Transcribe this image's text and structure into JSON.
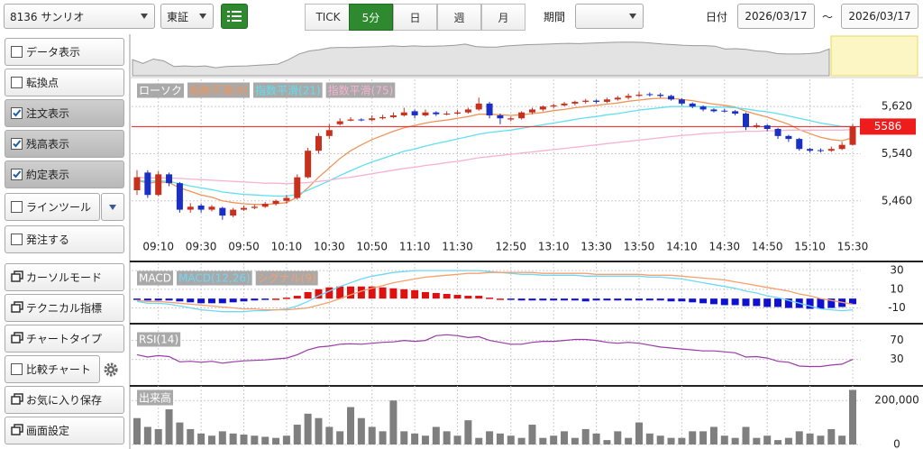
{
  "toolbar": {
    "symbol": "8136 サンリオ",
    "market": "東証",
    "intervals": [
      "TICK",
      "5分",
      "日",
      "週",
      "月"
    ],
    "active_interval": 1,
    "period_label": "期間",
    "date_label": "日付",
    "date_from": "2026/03/17",
    "date_sep": "～",
    "date_to": "2026/03/17"
  },
  "sidebar": [
    {
      "label": "データ表示",
      "checkbox": true,
      "checked": false
    },
    {
      "label": "転換点",
      "checkbox": true,
      "checked": false
    },
    {
      "label": "注文表示",
      "checkbox": true,
      "checked": true
    },
    {
      "label": "残高表示",
      "checkbox": true,
      "checked": true
    },
    {
      "label": "約定表示",
      "checkbox": true,
      "checked": true
    },
    {
      "label": "ラインツール",
      "checkbox": true,
      "checked": false,
      "accessory": "dropdown"
    },
    {
      "label": "発注する",
      "checkbox": true,
      "checked": false
    },
    {
      "label": "カーソルモード",
      "checkbox": false
    },
    {
      "label": "テクニカル指標",
      "checkbox": false
    },
    {
      "label": "チャートタイプ",
      "checkbox": false
    },
    {
      "label": "比較チャート",
      "checkbox": true,
      "checked": false,
      "accessory": "settings"
    },
    {
      "label": "お気に入り保存",
      "checkbox": false
    },
    {
      "label": "画面設定",
      "checkbox": false
    }
  ],
  "chart_data": [
    {
      "type": "candlestick",
      "name": "ローソク",
      "up_color": "#c8301e",
      "down_color": "#1b2fc4",
      "categories": [
        null,
        null,
        "09:10",
        null,
        null,
        null,
        "09:30",
        null,
        null,
        null,
        "09:50",
        null,
        null,
        null,
        "10:10",
        null,
        null,
        null,
        "10:30",
        null,
        null,
        null,
        "10:50",
        null,
        null,
        null,
        "11:10",
        null,
        null,
        null,
        "11:30",
        null,
        null,
        null,
        null,
        "12:50",
        null,
        null,
        null,
        "13:10",
        null,
        null,
        null,
        "13:30",
        null,
        null,
        null,
        "13:50",
        null,
        null,
        null,
        "14:10",
        null,
        null,
        null,
        "14:30",
        null,
        null,
        null,
        "14:50",
        null,
        null,
        null,
        "15:10",
        null,
        null,
        null,
        "15:30"
      ],
      "open": [
        5478,
        5508,
        5470,
        5505,
        5490,
        5445,
        5452,
        5445,
        5448,
        5435,
        5445,
        5448,
        5450,
        5455,
        5460,
        5465,
        5500,
        5545,
        5570,
        5590,
        5596,
        5598,
        5597,
        5600,
        5602,
        5605,
        5612,
        5605,
        5610,
        5607,
        5608,
        5610,
        5615,
        5625,
        5605,
        5598,
        5600,
        5610,
        5615,
        5620,
        5622,
        5625,
        5628,
        5630,
        5628,
        5632,
        5635,
        5638,
        5641,
        5640,
        5638,
        5632,
        5625,
        5620,
        5615,
        5613,
        5612,
        5608,
        5585,
        5588,
        5582,
        5570,
        5565,
        5548,
        5546,
        5545,
        5548,
        5555
      ],
      "high": [
        5512,
        5512,
        5510,
        5508,
        5492,
        5456,
        5455,
        5453,
        5450,
        5448,
        5452,
        5453,
        5458,
        5462,
        5470,
        5505,
        5550,
        5575,
        5590,
        5600,
        5602,
        5600,
        5605,
        5606,
        5610,
        5618,
        5615,
        5615,
        5612,
        5612,
        5614,
        5618,
        5635,
        5628,
        5608,
        5603,
        5612,
        5618,
        5622,
        5625,
        5628,
        5630,
        5633,
        5632,
        5635,
        5638,
        5642,
        5645,
        5644,
        5643,
        5640,
        5634,
        5627,
        5622,
        5617,
        5616,
        5614,
        5610,
        5592,
        5590,
        5584,
        5572,
        5567,
        5550,
        5549,
        5552,
        5560,
        5590
      ],
      "low": [
        5470,
        5465,
        5468,
        5485,
        5440,
        5440,
        5440,
        5442,
        5428,
        5432,
        5443,
        5446,
        5448,
        5452,
        5455,
        5462,
        5498,
        5540,
        5565,
        5588,
        5595,
        5595,
        5595,
        5598,
        5600,
        5603,
        5600,
        5603,
        5604,
        5605,
        5606,
        5608,
        5613,
        5600,
        5590,
        5595,
        5598,
        5607,
        5612,
        5617,
        5620,
        5622,
        5625,
        5625,
        5626,
        5630,
        5632,
        5636,
        5637,
        5635,
        5630,
        5622,
        5617,
        5612,
        5610,
        5610,
        5605,
        5580,
        5583,
        5578,
        5565,
        5560,
        5545,
        5542,
        5542,
        5543,
        5546,
        5554
      ],
      "close": [
        5500,
        5470,
        5505,
        5490,
        5445,
        5450,
        5445,
        5450,
        5435,
        5445,
        5448,
        5450,
        5455,
        5460,
        5465,
        5500,
        5545,
        5570,
        5580,
        5595,
        5598,
        5597,
        5600,
        5602,
        5605,
        5610,
        5605,
        5610,
        5607,
        5608,
        5610,
        5615,
        5625,
        5605,
        5600,
        5600,
        5610,
        5615,
        5620,
        5622,
        5625,
        5628,
        5630,
        5628,
        5632,
        5635,
        5638,
        5640,
        5640,
        5638,
        5632,
        5625,
        5620,
        5615,
        5612,
        5612,
        5608,
        5585,
        5588,
        5582,
        5570,
        5565,
        5548,
        5545,
        5545,
        5548,
        5555,
        5586
      ],
      "lines": [
        {
          "name": "指数平滑(9)",
          "color": "#f0955a",
          "values": [
            5495,
            5490,
            5492,
            5491,
            5482,
            5476,
            5470,
            5466,
            5460,
            5457,
            5455,
            5454,
            5454,
            5455,
            5457,
            5466,
            5482,
            5500,
            5516,
            5532,
            5545,
            5555,
            5564,
            5571,
            5578,
            5584,
            5588,
            5592,
            5595,
            5597,
            5600,
            5603,
            5607,
            5607,
            5606,
            5605,
            5606,
            5608,
            5610,
            5613,
            5615,
            5618,
            5620,
            5622,
            5624,
            5626,
            5629,
            5631,
            5633,
            5634,
            5634,
            5632,
            5630,
            5627,
            5624,
            5622,
            5619,
            5612,
            5607,
            5602,
            5596,
            5590,
            5581,
            5574,
            5568,
            5564,
            5562,
            5567
          ]
        },
        {
          "name": "指数平滑(21)",
          "color": "#5fe0ef",
          "values": [
            5495,
            5493,
            5494,
            5493,
            5489,
            5485,
            5482,
            5479,
            5475,
            5473,
            5471,
            5470,
            5469,
            5468,
            5468,
            5471,
            5478,
            5486,
            5494,
            5503,
            5511,
            5519,
            5526,
            5532,
            5538,
            5544,
            5548,
            5553,
            5557,
            5561,
            5565,
            5569,
            5573,
            5576,
            5578,
            5580,
            5583,
            5586,
            5589,
            5592,
            5595,
            5598,
            5601,
            5603,
            5606,
            5608,
            5611,
            5614,
            5616,
            5618,
            5620,
            5620,
            5620,
            5620,
            5619,
            5619,
            5618,
            5616,
            5613,
            5611,
            5608,
            5604,
            5600,
            5596,
            5592,
            5589,
            5586,
            5586
          ]
        },
        {
          "name": "指数平滑(75)",
          "color": "#f6b3d0",
          "values": [
            5500,
            5499,
            5499,
            5499,
            5498,
            5497,
            5496,
            5495,
            5494,
            5493,
            5492,
            5491,
            5490,
            5490,
            5489,
            5490,
            5491,
            5493,
            5495,
            5498,
            5500,
            5503,
            5506,
            5509,
            5512,
            5515,
            5517,
            5520,
            5522,
            5525,
            5527,
            5530,
            5533,
            5535,
            5537,
            5539,
            5541,
            5543,
            5545,
            5547,
            5549,
            5551,
            5553,
            5555,
            5557,
            5559,
            5561,
            5563,
            5565,
            5567,
            5569,
            5571,
            5572,
            5574,
            5575,
            5576,
            5577,
            5578,
            5578,
            5579,
            5579,
            5580,
            5580,
            5580,
            5580,
            5580,
            5580,
            5581
          ]
        }
      ],
      "last_price": 5586,
      "last_price_color": "#ee1c1c",
      "ylim": [
        5400,
        5660
      ],
      "yticks": [
        {
          "value": 5460,
          "label": "5,460"
        },
        {
          "value": 5540,
          "label": "5,540"
        },
        {
          "value": 5620,
          "label": "5,620"
        }
      ],
      "grid": true
    },
    {
      "type": "macd",
      "histogram": {
        "name": "MACD",
        "up_color": "#e01010",
        "down_color": "#1010d0",
        "values": [
          -1,
          -2,
          -2,
          -2,
          -3,
          -4,
          -5,
          -5,
          -5,
          -4,
          -3,
          -2,
          -1,
          0,
          1,
          3,
          7,
          10,
          12,
          13,
          13,
          13,
          13,
          12,
          11,
          10,
          9,
          7,
          6,
          5,
          4,
          3,
          3,
          1,
          0,
          -1,
          -2,
          -2,
          -2,
          -2,
          -2,
          -2,
          -3,
          -2,
          -2,
          -2,
          -2,
          -2,
          -2,
          -2,
          -3,
          -3,
          -4,
          -5,
          -6,
          -7,
          -7,
          -8,
          -8,
          -9,
          -9,
          -10,
          -10,
          -11,
          -11,
          -10,
          -9,
          -6
        ]
      },
      "series": [
        {
          "name": "MACD(12,26)",
          "color": "#6fd8f5",
          "values": [
            -3,
            -5,
            -5,
            -6,
            -8,
            -10,
            -12,
            -13,
            -14,
            -14,
            -14,
            -13,
            -13,
            -12,
            -11,
            -8,
            -3,
            3,
            8,
            13,
            17,
            21,
            24,
            26,
            28,
            29,
            30,
            30,
            30,
            30,
            30,
            30,
            30,
            29,
            28,
            27,
            26,
            26,
            25,
            25,
            25,
            25,
            24,
            24,
            24,
            24,
            24,
            24,
            23,
            23,
            22,
            21,
            19,
            17,
            15,
            13,
            11,
            8,
            6,
            3,
            1,
            -2,
            -5,
            -8,
            -11,
            -12,
            -13,
            -12
          ]
        },
        {
          "name": "シグナル(9)",
          "color": "#f4a070",
          "values": [
            -2,
            -3,
            -3,
            -4,
            -5,
            -6,
            -7,
            -8,
            -9,
            -10,
            -11,
            -11,
            -12,
            -12,
            -12,
            -11,
            -10,
            -7,
            -4,
            0,
            4,
            8,
            11,
            14,
            17,
            19,
            21,
            23,
            24,
            25,
            26,
            27,
            27,
            28,
            28,
            28,
            28,
            28,
            27,
            27,
            27,
            27,
            27,
            26,
            26,
            26,
            26,
            26,
            25,
            25,
            25,
            24,
            23,
            22,
            21,
            20,
            18,
            16,
            14,
            12,
            10,
            8,
            5,
            3,
            0,
            -2,
            -4,
            -6
          ]
        }
      ],
      "ylim": [
        -24,
        34
      ],
      "yticks": [
        30,
        10,
        -10
      ],
      "grid": true
    },
    {
      "type": "line",
      "series": [
        {
          "name": "RSI(14)",
          "color": "#9a3aa8",
          "values": [
            40,
            35,
            38,
            36,
            25,
            26,
            24,
            26,
            22,
            25,
            27,
            28,
            29,
            31,
            33,
            40,
            50,
            56,
            58,
            62,
            63,
            62,
            64,
            66,
            67,
            70,
            68,
            70,
            80,
            82,
            80,
            76,
            78,
            70,
            66,
            62,
            62,
            66,
            68,
            68,
            70,
            72,
            72,
            70,
            66,
            64,
            66,
            64,
            60,
            56,
            54,
            52,
            50,
            48,
            48,
            46,
            44,
            35,
            36,
            33,
            26,
            24,
            16,
            15,
            15,
            18,
            20,
            30
          ]
        }
      ],
      "ylim": [
        -22,
        92
      ],
      "yticks": [
        70,
        30
      ],
      "grid": true
    },
    {
      "type": "bar",
      "name": "出来高",
      "color": "#7f7f7f",
      "values": [
        120000,
        80000,
        70000,
        160000,
        100000,
        70000,
        50000,
        40000,
        60000,
        50000,
        45000,
        40000,
        35000,
        30000,
        40000,
        90000,
        140000,
        120000,
        80000,
        60000,
        170000,
        120000,
        80000,
        60000,
        200000,
        60000,
        50000,
        40000,
        80000,
        60000,
        40000,
        110000,
        30000,
        60000,
        50000,
        40000,
        30000,
        90000,
        30000,
        40000,
        60000,
        30000,
        70000,
        50000,
        20000,
        60000,
        30000,
        100000,
        50000,
        40000,
        30000,
        30000,
        60000,
        60000,
        80000,
        40000,
        30000,
        80000,
        30000,
        40000,
        20000,
        30000,
        60000,
        50000,
        40000,
        70000,
        40000,
        248000
      ],
      "ylim": [
        0,
        250000
      ],
      "yticks": [
        {
          "value": 200000,
          "label": "200,000"
        },
        0
      ],
      "grid": true
    }
  ]
}
